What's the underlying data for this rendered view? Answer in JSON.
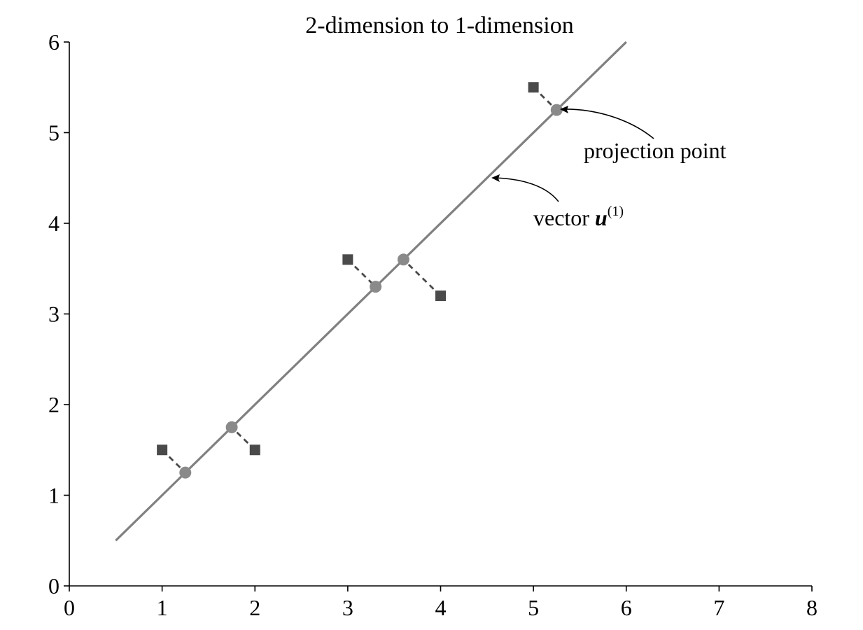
{
  "chart_data": {
    "type": "scatter",
    "title": "2-dimension to 1-dimension",
    "xlabel": "",
    "ylabel": "",
    "xlim": [
      0,
      8
    ],
    "ylim": [
      0,
      6
    ],
    "x_ticks": [
      "0",
      "1",
      "2",
      "3",
      "4",
      "5",
      "6",
      "7",
      "8"
    ],
    "y_ticks": [
      "0",
      "1",
      "2",
      "3",
      "4",
      "5",
      "6"
    ],
    "grid": false,
    "line": {
      "x": [
        0.5,
        6.0
      ],
      "y": [
        0.5,
        6.0
      ]
    },
    "original_points": [
      {
        "x": 1.0,
        "y": 1.5
      },
      {
        "x": 2.0,
        "y": 1.5
      },
      {
        "x": 3.0,
        "y": 3.6
      },
      {
        "x": 4.0,
        "y": 3.2
      },
      {
        "x": 5.0,
        "y": 5.5
      }
    ],
    "projection_points": [
      {
        "x": 1.25,
        "y": 1.25
      },
      {
        "x": 1.75,
        "y": 1.75
      },
      {
        "x": 3.3,
        "y": 3.3
      },
      {
        "x": 3.6,
        "y": 3.6
      },
      {
        "x": 5.25,
        "y": 5.25
      }
    ],
    "annotations": {
      "projection": {
        "text": "projection point"
      },
      "vector": {
        "text": "vector ",
        "bold": "u",
        "superscript": "(1)"
      }
    }
  }
}
